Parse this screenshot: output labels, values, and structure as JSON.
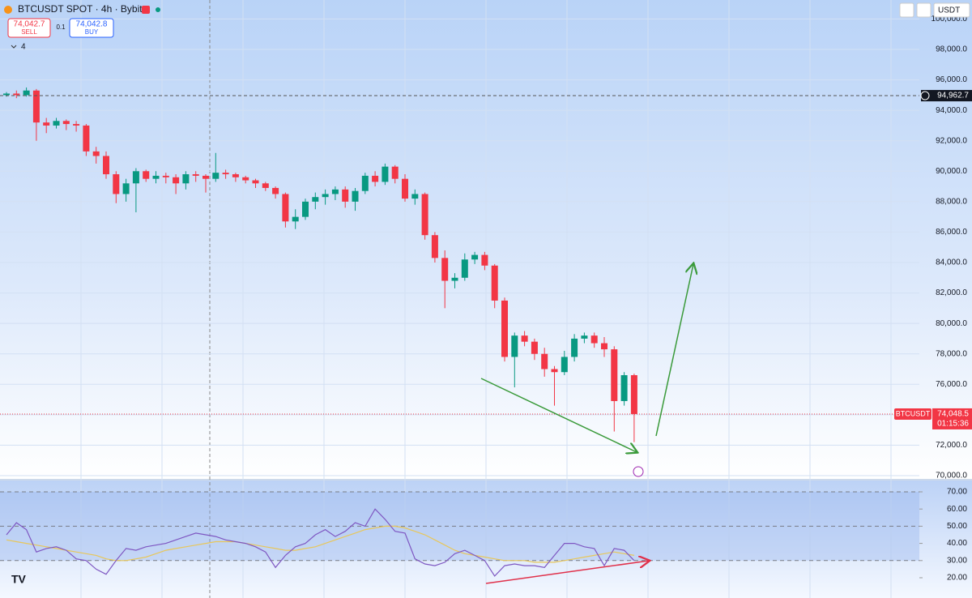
{
  "header": {
    "sell_price": "74,042.7",
    "sell": "SELL",
    "qty": "0.1",
    "buy_price": "74,042.8",
    "buy": "BUY",
    "indicators": "4",
    "currency": "USDT"
  },
  "chart_data": {
    "type": "candlestick",
    "title": "BTCUSDT SPOT · 4h · Bybit",
    "up_color": "#089981",
    "down_color": "#f23645",
    "ylim": [
      69840,
      101247
    ],
    "yticks": [
      {
        "value": 70000,
        "label": "70,000.0"
      },
      {
        "value": 72000,
        "label": "72,000.0"
      },
      {
        "value": 74000,
        "label": "74,000.0"
      },
      {
        "value": 76000,
        "label": "76,000.0"
      },
      {
        "value": 78000,
        "label": "78,000.0"
      },
      {
        "value": 80000,
        "label": "80,000.0"
      },
      {
        "value": 82000,
        "label": "82,000.0"
      },
      {
        "value": 84000,
        "label": "84,000.0"
      },
      {
        "value": 86000,
        "label": "86,000.0"
      },
      {
        "value": 88000,
        "label": "88,000.0"
      },
      {
        "value": 90000,
        "label": "90,000.0"
      },
      {
        "value": 92000,
        "label": "92,000.0"
      },
      {
        "value": 94000,
        "label": "94,000.0"
      },
      {
        "value": 96000,
        "label": "96,000.0"
      },
      {
        "value": 98000,
        "label": "98,000.0"
      },
      {
        "value": 100000,
        "label": "100,000.0"
      }
    ],
    "reference_line": {
      "value": 94962.7,
      "label": "94,962.7"
    },
    "last_price": {
      "value": 74048.5,
      "label": "74,048.5",
      "symbol": "BTCUSDT",
      "countdown": "01:15:36"
    },
    "ohlc": [
      [
        95000,
        95200,
        94900,
        95100
      ],
      [
        95100,
        95300,
        94800,
        95000
      ],
      [
        95000,
        95500,
        94900,
        95300
      ],
      [
        95300,
        95400,
        92000,
        93200
      ],
      [
        93200,
        93500,
        92500,
        93000
      ],
      [
        93000,
        93500,
        92800,
        93300
      ],
      [
        93300,
        93400,
        92700,
        93100
      ],
      [
        93100,
        93300,
        92600,
        93000
      ],
      [
        93000,
        93100,
        91000,
        91300
      ],
      [
        91300,
        91600,
        90500,
        91000
      ],
      [
        91000,
        91300,
        89500,
        89800
      ],
      [
        89800,
        90000,
        87900,
        88500
      ],
      [
        88500,
        89500,
        88000,
        89200
      ],
      [
        89200,
        90200,
        87300,
        90000
      ],
      [
        90000,
        90100,
        89300,
        89500
      ],
      [
        89500,
        90000,
        89200,
        89700
      ],
      [
        89700,
        89900,
        89200,
        89600
      ],
      [
        89600,
        89800,
        88500,
        89200
      ],
      [
        89200,
        90000,
        88800,
        89800
      ],
      [
        89800,
        90000,
        89300,
        89700
      ],
      [
        89700,
        89800,
        88600,
        89500
      ],
      [
        89500,
        91200,
        89300,
        89900
      ],
      [
        89900,
        90100,
        89500,
        89800
      ],
      [
        89800,
        89900,
        89300,
        89600
      ],
      [
        89600,
        89700,
        89200,
        89400
      ],
      [
        89400,
        89500,
        88900,
        89200
      ],
      [
        89200,
        89300,
        88700,
        88900
      ],
      [
        88900,
        89000,
        88200,
        88500
      ],
      [
        88500,
        88600,
        86300,
        86700
      ],
      [
        86700,
        87500,
        86200,
        87000
      ],
      [
        87000,
        88200,
        86800,
        88000
      ],
      [
        88000,
        88600,
        87500,
        88300
      ],
      [
        88300,
        88800,
        87800,
        88500
      ],
      [
        88500,
        89000,
        88100,
        88800
      ],
      [
        88800,
        89000,
        87600,
        88000
      ],
      [
        88000,
        88900,
        87400,
        88700
      ],
      [
        88700,
        89900,
        88500,
        89700
      ],
      [
        89700,
        90000,
        89000,
        89300
      ],
      [
        89300,
        90500,
        89100,
        90300
      ],
      [
        90300,
        90400,
        89200,
        89500
      ],
      [
        89500,
        89800,
        88000,
        88200
      ],
      [
        88200,
        88800,
        87800,
        88500
      ],
      [
        88500,
        88600,
        85500,
        85800
      ],
      [
        85800,
        86000,
        84000,
        84300
      ],
      [
        84300,
        84800,
        81000,
        82800
      ],
      [
        82800,
        83300,
        82300,
        83000
      ],
      [
        83000,
        84600,
        82800,
        84200
      ],
      [
        84200,
        84700,
        83900,
        84500
      ],
      [
        84500,
        84700,
        83500,
        83800
      ],
      [
        83800,
        83900,
        81000,
        81500
      ],
      [
        81500,
        81700,
        77500,
        77800
      ],
      [
        77800,
        79400,
        75800,
        79200
      ],
      [
        79200,
        79500,
        78500,
        78800
      ],
      [
        78800,
        79000,
        77600,
        78000
      ],
      [
        78000,
        78400,
        76500,
        77000
      ],
      [
        77000,
        77200,
        74600,
        76800
      ],
      [
        76800,
        78200,
        76600,
        77800
      ],
      [
        77800,
        79300,
        77500,
        79000
      ],
      [
        79000,
        79400,
        78700,
        79200
      ],
      [
        79200,
        79400,
        78400,
        78700
      ],
      [
        78700,
        79100,
        77800,
        78300
      ],
      [
        78300,
        78500,
        72900,
        74900
      ],
      [
        74900,
        76800,
        74600,
        76600
      ],
      [
        76600,
        76700,
        72200,
        74048.5
      ]
    ],
    "rsi": {
      "ylim": [
        8.2,
        76.6
      ],
      "yticks": [
        {
          "value": 20,
          "label": "20.00"
        },
        {
          "value": 30,
          "label": "30.00"
        },
        {
          "value": 40,
          "label": "40.00"
        },
        {
          "value": 50,
          "label": "50.00"
        },
        {
          "value": 60,
          "label": "60.00"
        },
        {
          "value": 70,
          "label": "70.00"
        }
      ],
      "bands": [
        70,
        50,
        30
      ],
      "color": "#7e57c2",
      "ma_color": "#e8c75a",
      "values": [
        45,
        52,
        48,
        35,
        37,
        38,
        36,
        31,
        30,
        25,
        22,
        30,
        37,
        36,
        38,
        39,
        40,
        42,
        44,
        46,
        45,
        44,
        42,
        41,
        40,
        38,
        35,
        26,
        33,
        38,
        40,
        45,
        48,
        44,
        47,
        52,
        50,
        60,
        54,
        47,
        46,
        31,
        28,
        27,
        29,
        34,
        36,
        33,
        30,
        21,
        27,
        28,
        27,
        27,
        26,
        33,
        40,
        40,
        38,
        37,
        27,
        37,
        36,
        30
      ],
      "ma": [
        42,
        41,
        40,
        39,
        38,
        37,
        36,
        35,
        34,
        33,
        31,
        30,
        30,
        31,
        32,
        34,
        36,
        37,
        38,
        39,
        40,
        41,
        41,
        41,
        40,
        39,
        38,
        37,
        36,
        36,
        37,
        38,
        40,
        42,
        44,
        46,
        48,
        49,
        50,
        50,
        49,
        47,
        45,
        42,
        39,
        36,
        34,
        33,
        32,
        31,
        30,
        30,
        30,
        29,
        29,
        29,
        30,
        31,
        32,
        33,
        34,
        35,
        34,
        33
      ]
    }
  }
}
